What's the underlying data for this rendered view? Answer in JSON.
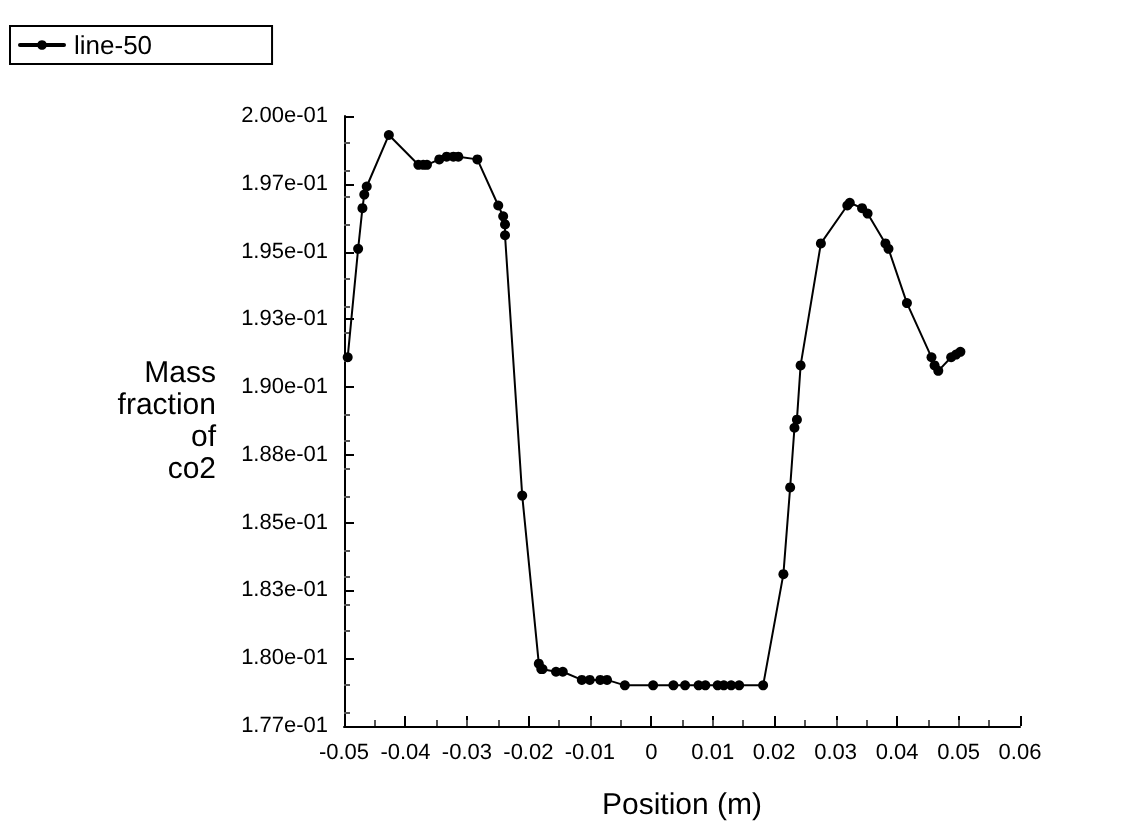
{
  "chart_data": {
    "type": "line",
    "xlabel": "Position (m)",
    "ylabel": "Mass\nfraction\nof\nco2",
    "legend": "top left",
    "marker": "circle",
    "line_style": "solid",
    "grid": false,
    "xlim": [
      -0.05,
      0.06
    ],
    "xticks": [
      -0.05,
      -0.04,
      -0.03,
      -0.02,
      -0.01,
      0,
      0.01,
      0.02,
      0.03,
      0.04,
      0.05,
      0.06
    ],
    "ylim": [
      0.1775,
      0.2
    ],
    "yticks": [
      {
        "value": 0.1775,
        "label": "1.77e-01"
      },
      {
        "value": 0.18,
        "label": "1.80e-01"
      },
      {
        "value": 0.1825,
        "label": "1.83e-01"
      },
      {
        "value": 0.185,
        "label": "1.85e-01"
      },
      {
        "value": 0.1875,
        "label": "1.88e-01"
      },
      {
        "value": 0.19,
        "label": "1.90e-01"
      },
      {
        "value": 0.1925,
        "label": "1.93e-01"
      },
      {
        "value": 0.195,
        "label": "1.95e-01"
      },
      {
        "value": 0.1975,
        "label": "1.97e-01"
      },
      {
        "value": 0.2,
        "label": "2.00e-01"
      }
    ],
    "series": [
      {
        "name": "line-50",
        "color": "#000000",
        "x": [
          -0.0494,
          -0.0477,
          -0.047,
          -0.0467,
          -0.0463,
          -0.0427,
          -0.0379,
          -0.0371,
          -0.0365,
          -0.0345,
          -0.0333,
          -0.0322,
          -0.0314,
          -0.0283,
          -0.0249,
          -0.0241,
          -0.0238,
          -0.0238,
          -0.021,
          -0.0183,
          -0.0179,
          -0.0177,
          -0.0155,
          -0.0144,
          -0.0113,
          -0.01,
          -0.0083,
          -0.0072,
          -0.0043,
          0.0003,
          0.0036,
          0.0055,
          0.0077,
          0.0088,
          0.0108,
          0.0118,
          0.013,
          0.0143,
          0.0182,
          0.0215,
          0.0226,
          0.0233,
          0.0237,
          0.0243,
          0.0276,
          0.0319,
          0.0323,
          0.0343,
          0.0352,
          0.0381,
          0.0386,
          0.0416,
          0.0456,
          0.0461,
          0.0467,
          0.0488,
          0.0496,
          0.0503
        ],
        "values": [
          0.1911,
          0.1951,
          0.1966,
          0.1971,
          0.1974,
          0.1993,
          0.1982,
          0.1982,
          0.1982,
          0.1984,
          0.1985,
          0.1985,
          0.1985,
          0.1984,
          0.1967,
          0.1963,
          0.196,
          0.1956,
          0.186,
          0.1798,
          0.1796,
          0.1796,
          0.1795,
          0.1795,
          0.1792,
          0.1792,
          0.1792,
          0.1792,
          0.179,
          0.179,
          0.179,
          0.179,
          0.179,
          0.179,
          0.179,
          0.179,
          0.179,
          0.179,
          0.179,
          0.1831,
          0.1863,
          0.1885,
          0.1888,
          0.1908,
          0.1953,
          0.1967,
          0.1968,
          0.1966,
          0.1964,
          0.1953,
          0.1951,
          0.1931,
          0.1911,
          0.1908,
          0.1906,
          0.1911,
          0.1912,
          0.1913
        ]
      }
    ]
  }
}
